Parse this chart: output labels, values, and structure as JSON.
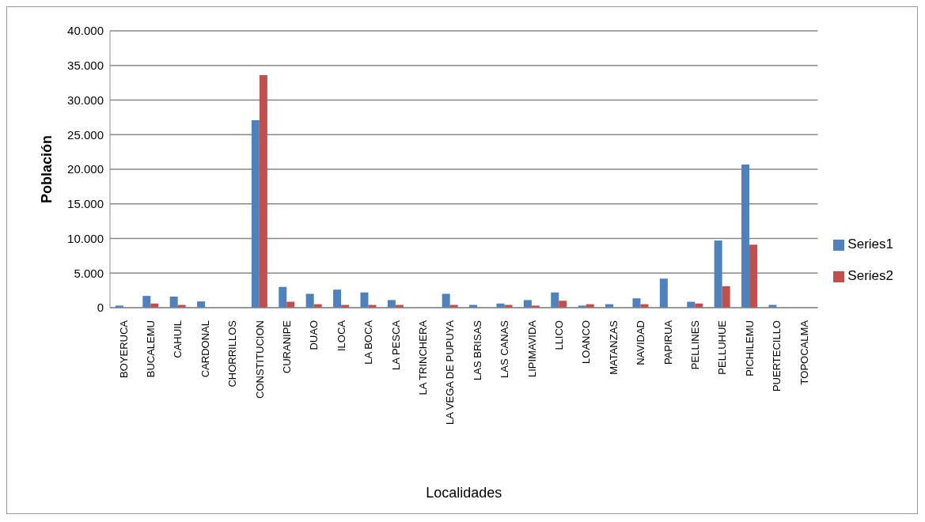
{
  "chart_data": {
    "type": "bar",
    "xlabel": "Localidades",
    "ylabel": "Población",
    "categories": [
      "BOYERUCA",
      "BUCALEMU",
      "CAHUIL",
      "CARDONAL",
      "CHORRILLOS",
      "CONSTITUCION",
      "CURANIPE",
      "DUAO",
      "ILOCA",
      "LA BOCA",
      "LA PESCA",
      "LA TRINCHERA",
      "LA VEGA DE PUPUYA",
      "LAS BRISAS",
      "LAS CANAS",
      "LIPIMAVIDA",
      "LLICO",
      "LOANCO",
      "MATANZAS",
      "NAVIDAD",
      "PAPIRUA",
      "PELLINES",
      "PELLUHUE",
      "PICHILEMU",
      "PUERTECILLO",
      "TOPOCALMA"
    ],
    "series": [
      {
        "name": "Series1",
        "color": "#4f81bd",
        "values": [
          300,
          1700,
          1600,
          900,
          0,
          27100,
          3000,
          2000,
          2600,
          2200,
          1100,
          0,
          2000,
          400,
          600,
          1100,
          2200,
          300,
          500,
          1350,
          4200,
          850,
          9700,
          20700,
          400,
          0
        ]
      },
      {
        "name": "Series2",
        "color": "#c0504d",
        "values": [
          0,
          600,
          400,
          0,
          0,
          33600,
          850,
          500,
          400,
          400,
          400,
          0,
          400,
          0,
          400,
          300,
          1000,
          500,
          0,
          500,
          0,
          600,
          3100,
          9100,
          0,
          0
        ]
      }
    ],
    "ylim": [
      0,
      40000
    ],
    "yticks": [
      0,
      {
        "value": 5000,
        "label": "5.000"
      },
      {
        "value": 10000,
        "label": "10.000"
      },
      {
        "value": 15000,
        "label": "15.000"
      },
      {
        "value": 20000,
        "label": "20.000"
      },
      {
        "value": 25000,
        "label": "25.000"
      },
      {
        "value": 30000,
        "label": "30.000"
      },
      {
        "value": 35000,
        "label": "35.000"
      },
      {
        "value": 40000,
        "label": "40.000"
      }
    ],
    "grid": "y",
    "legend": "right"
  }
}
